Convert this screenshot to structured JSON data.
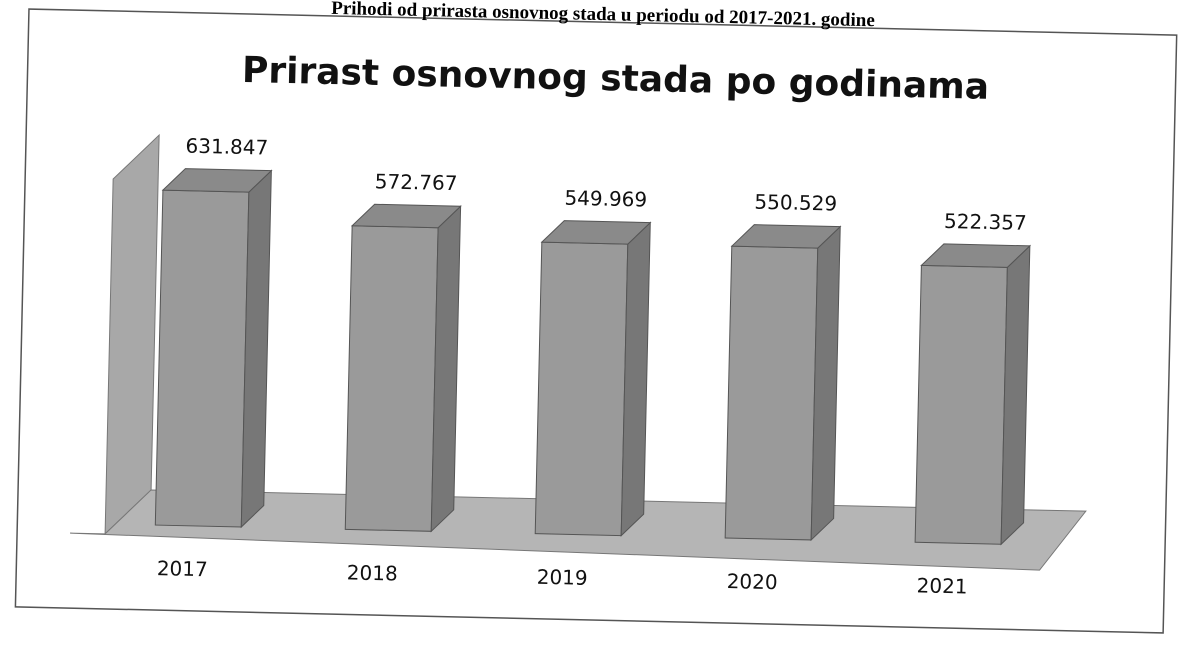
{
  "caption": "Prihodi od prirasta osnovnog stada u periodu od 2017-2021. godine",
  "chart_data": {
    "type": "bar3d",
    "title": "Prirast osnovnog stada po godinama",
    "categories": [
      "2017",
      "2018",
      "2019",
      "2020",
      "2021"
    ],
    "values": [
      631847,
      572767,
      549969,
      550529,
      522357
    ],
    "value_labels": [
      "631.847",
      "572.767",
      "549.969",
      "550.529",
      "522.357"
    ],
    "color": "#9a9a9a"
  }
}
